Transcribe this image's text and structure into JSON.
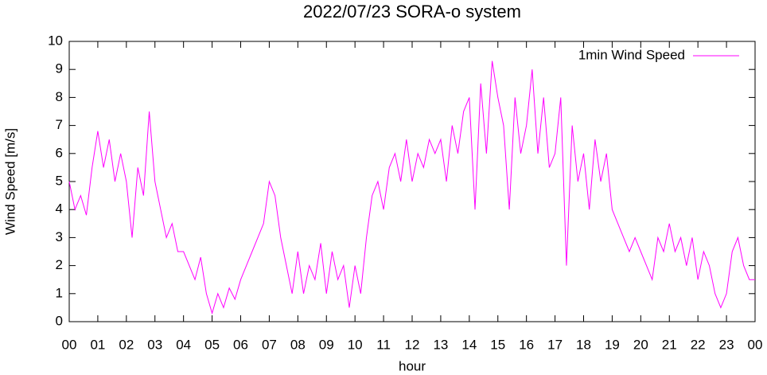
{
  "chart_data": {
    "type": "line",
    "title": "2022/07/23 SORA-o system",
    "x_label": "hour",
    "y_label": "Wind Speed [m/s]",
    "x": [
      0,
      0.2,
      0.4,
      0.6,
      0.8,
      1,
      1.2,
      1.4,
      1.6,
      1.8,
      2,
      2.2,
      2.4,
      2.6,
      2.8,
      3,
      3.2,
      3.4,
      3.6,
      3.8,
      4,
      4.2,
      4.4,
      4.6,
      4.8,
      5,
      5.2,
      5.4,
      5.6,
      5.8,
      6,
      6.2,
      6.4,
      6.6,
      6.8,
      7,
      7.2,
      7.4,
      7.6,
      7.8,
      8,
      8.2,
      8.4,
      8.6,
      8.8,
      9,
      9.2,
      9.4,
      9.6,
      9.8,
      10,
      10.2,
      10.4,
      10.6,
      10.8,
      11,
      11.2,
      11.4,
      11.6,
      11.8,
      12,
      12.2,
      12.4,
      12.6,
      12.8,
      13,
      13.2,
      13.4,
      13.6,
      13.8,
      14,
      14.2,
      14.4,
      14.6,
      14.8,
      15,
      15.2,
      15.4,
      15.6,
      15.8,
      16,
      16.2,
      16.4,
      16.6,
      16.8,
      17,
      17.2,
      17.4,
      17.6,
      17.8,
      18,
      18.2,
      18.4,
      18.6,
      18.8,
      19,
      19.2,
      19.4,
      19.6,
      19.8,
      20,
      20.2,
      20.4,
      20.6,
      20.8,
      21,
      21.2,
      21.4,
      21.6,
      21.8,
      22,
      22.2,
      22.4,
      22.6,
      22.8,
      23,
      23.2,
      23.4,
      23.6,
      23.8,
      24
    ],
    "series": [
      {
        "name": "1min Wind Speed",
        "color": "#ff00ff",
        "values": [
          5,
          4,
          4.5,
          3.8,
          5.5,
          6.8,
          5.5,
          6.5,
          5,
          6,
          5,
          3,
          5.5,
          4.5,
          7.5,
          5,
          4,
          3,
          3.5,
          2.5,
          2.5,
          2,
          1.5,
          2.3,
          1,
          0.3,
          1,
          0.5,
          1.2,
          0.8,
          1.5,
          2,
          2.5,
          3,
          3.5,
          5,
          4.5,
          3,
          2,
          1,
          2.5,
          1,
          2,
          1.5,
          2.8,
          1,
          2.5,
          1.5,
          2,
          0.5,
          2,
          1,
          3,
          4.5,
          5,
          4,
          5.5,
          6,
          5,
          6.5,
          5,
          6,
          5.5,
          6.5,
          6,
          6.5,
          5,
          7,
          6,
          7.5,
          8,
          4,
          8.5,
          6,
          9.3,
          8,
          7,
          4,
          8,
          6,
          7,
          9,
          6,
          8,
          5.5,
          6,
          8,
          2,
          7,
          5,
          6,
          4,
          6.5,
          5,
          6,
          4,
          3.5,
          3,
          2.5,
          3,
          2.5,
          2,
          1.5,
          3,
          2.5,
          3.5,
          2.5,
          3,
          2,
          3,
          1.5,
          2.5,
          2,
          1,
          0.5,
          1,
          2.5,
          3,
          2,
          1.5,
          1.5
        ]
      }
    ],
    "xlim": [
      0,
      24
    ],
    "xticks": [
      {
        "value": 0,
        "label": "00"
      },
      {
        "value": 1,
        "label": "01"
      },
      {
        "value": 2,
        "label": "02"
      },
      {
        "value": 3,
        "label": "03"
      },
      {
        "value": 4,
        "label": "04"
      },
      {
        "value": 5,
        "label": "05"
      },
      {
        "value": 6,
        "label": "06"
      },
      {
        "value": 7,
        "label": "07"
      },
      {
        "value": 8,
        "label": "08"
      },
      {
        "value": 9,
        "label": "09"
      },
      {
        "value": 10,
        "label": "10"
      },
      {
        "value": 11,
        "label": "11"
      },
      {
        "value": 12,
        "label": "12"
      },
      {
        "value": 13,
        "label": "13"
      },
      {
        "value": 14,
        "label": "14"
      },
      {
        "value": 15,
        "label": "15"
      },
      {
        "value": 16,
        "label": "16"
      },
      {
        "value": 17,
        "label": "17"
      },
      {
        "value": 18,
        "label": "18"
      },
      {
        "value": 19,
        "label": "19"
      },
      {
        "value": 20,
        "label": "20"
      },
      {
        "value": 21,
        "label": "21"
      },
      {
        "value": 22,
        "label": "22"
      },
      {
        "value": 23,
        "label": "23"
      },
      {
        "value": 24,
        "label": "00"
      }
    ],
    "ylim": [
      0,
      10
    ],
    "yticks": [
      0,
      1,
      2,
      3,
      4,
      5,
      6,
      7,
      8,
      9,
      10
    ],
    "legend": "top-right"
  }
}
